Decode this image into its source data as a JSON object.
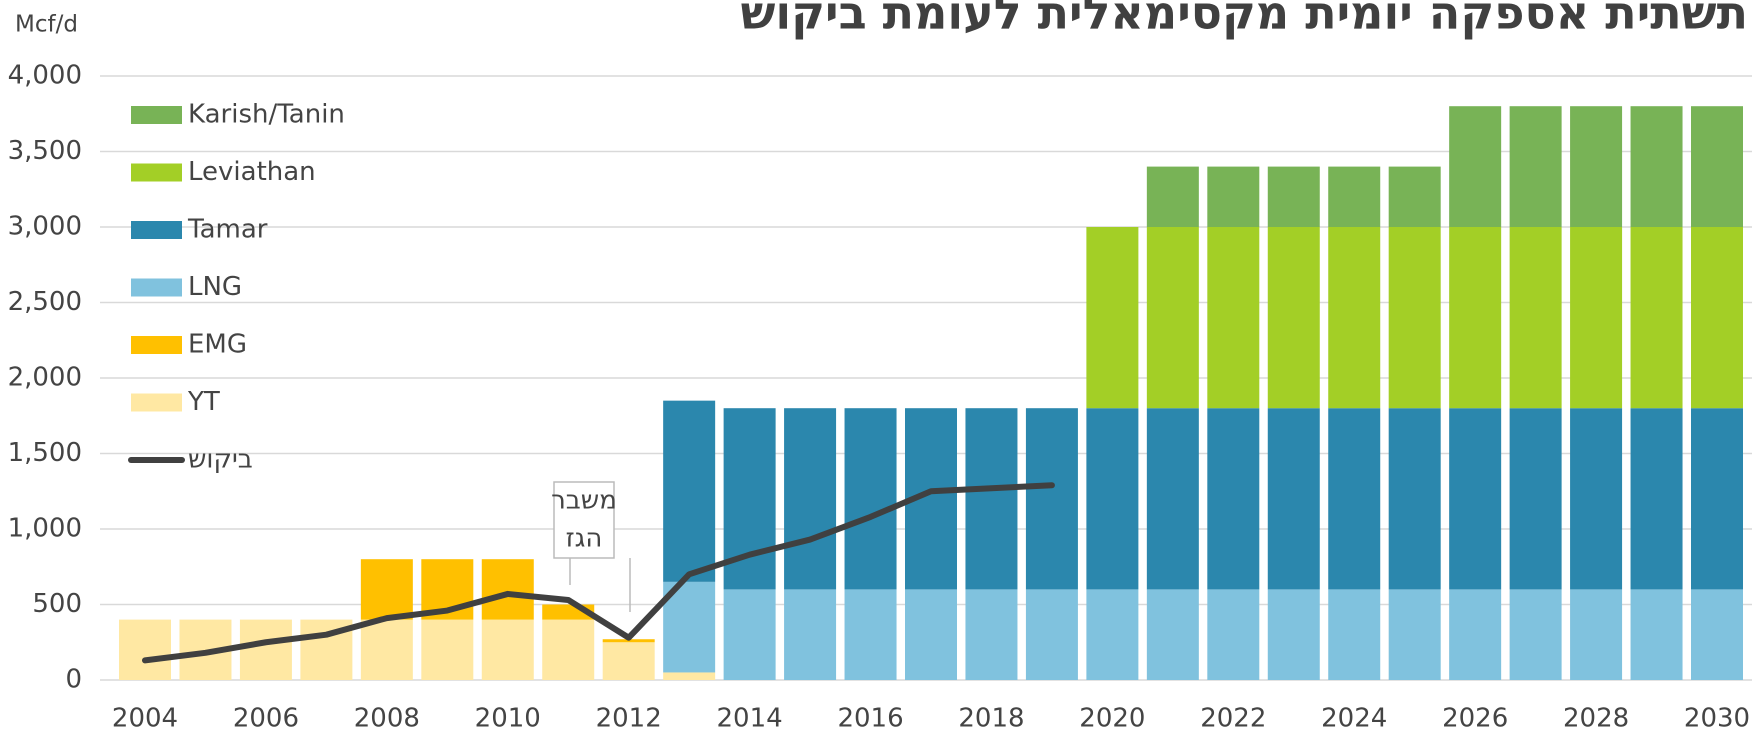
{
  "chart_data": {
    "type": "stacked_bar_line",
    "title": "תשתית אספקה יומית מקסימאלית לעומת ביקוש",
    "y_axis_label": "Mcf/d",
    "annotation": [
      "משבר",
      "הגז"
    ],
    "categories": [
      "2004",
      null,
      "2006",
      null,
      "2008",
      null,
      "2010",
      null,
      "2012",
      null,
      "2014",
      null,
      "2016",
      null,
      "2018",
      null,
      "2020",
      null,
      "2022",
      null,
      "2024",
      null,
      "2026",
      null,
      "2028",
      null,
      "2030"
    ],
    "series": [
      {
        "name": "YT",
        "color": "#ffe8a3",
        "values": [
          400,
          400,
          400,
          400,
          400,
          400,
          400,
          400,
          250,
          50,
          0,
          0,
          0,
          0,
          0,
          0,
          0,
          0,
          0,
          0,
          0,
          0,
          0,
          0,
          0,
          0,
          0
        ]
      },
      {
        "name": "EMG",
        "color": "#ffc000",
        "values": [
          0,
          0,
          0,
          0,
          400,
          400,
          400,
          100,
          20,
          0,
          0,
          0,
          0,
          0,
          0,
          0,
          0,
          0,
          0,
          0,
          0,
          0,
          0,
          0,
          0,
          0,
          0
        ]
      },
      {
        "name": "LNG",
        "color": "#80c2de",
        "values": [
          0,
          0,
          0,
          0,
          0,
          0,
          0,
          0,
          0,
          600,
          600,
          600,
          600,
          600,
          600,
          600,
          600,
          600,
          600,
          600,
          600,
          600,
          600,
          600,
          600,
          600,
          600
        ]
      },
      {
        "name": "Tamar",
        "color": "#2b87ad",
        "values": [
          0,
          0,
          0,
          0,
          0,
          0,
          0,
          0,
          0,
          1200,
          1200,
          1200,
          1200,
          1200,
          1200,
          1200,
          1200,
          1200,
          1200,
          1200,
          1200,
          1200,
          1200,
          1200,
          1200,
          1200,
          1200
        ]
      },
      {
        "name": "Leviathan",
        "color": "#a3cf26",
        "values": [
          0,
          0,
          0,
          0,
          0,
          0,
          0,
          0,
          0,
          0,
          0,
          0,
          0,
          0,
          0,
          0,
          1200,
          1200,
          1200,
          1200,
          1200,
          1200,
          1200,
          1200,
          1200,
          1200,
          1200
        ]
      },
      {
        "name": "Karish/Tanin",
        "color": "#78b356",
        "values": [
          0,
          0,
          0,
          0,
          0,
          0,
          0,
          0,
          0,
          0,
          0,
          0,
          0,
          0,
          0,
          0,
          0,
          400,
          400,
          400,
          400,
          400,
          800,
          800,
          800,
          800,
          800
        ]
      }
    ],
    "line": {
      "name": "ביקוש",
      "color": "#404040",
      "values": [
        130,
        180,
        250,
        300,
        410,
        460,
        570,
        530,
        280,
        700,
        830,
        930,
        1080,
        1250,
        1270,
        1290,
        null,
        null,
        null,
        null,
        null,
        null,
        null,
        null,
        null,
        null,
        null
      ]
    },
    "ylim": [
      0,
      4000
    ],
    "yticks": [
      0,
      500,
      {
        "value": 1000,
        "label": "1,000"
      },
      {
        "value": 1500,
        "label": "1,500"
      },
      {
        "value": 2000,
        "label": "2,000"
      },
      {
        "value": 2500,
        "label": "2,500"
      },
      {
        "value": 3000,
        "label": "3,000"
      },
      {
        "value": 3500,
        "label": "3,500"
      },
      {
        "value": 4000,
        "label": "4,000"
      }
    ],
    "grid": true
  }
}
